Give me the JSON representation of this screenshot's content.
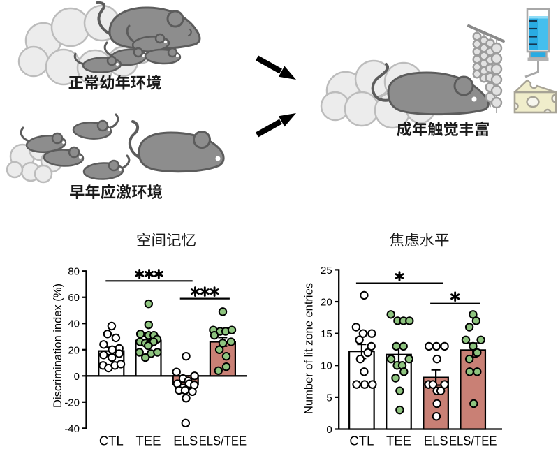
{
  "figure": {
    "background": "#ffffff",
    "diagram": {
      "scenes": [
        {
          "id": "normal-juvenile-environment",
          "label": "正常幼年环境",
          "icons": [
            "nest",
            "mother-mouse",
            "mouse-pup",
            "mouse-pup",
            "mouse-pup",
            "mouse-pup"
          ]
        },
        {
          "id": "early-life-stress-environment",
          "label": "早年应激环境",
          "icons": [
            "nest",
            "mother-mouse",
            "mouse-pup",
            "mouse-pup",
            "mouse-pup",
            "mouse-pup"
          ]
        },
        {
          "id": "adult-tactile-enrichment",
          "label": "成年触觉丰富",
          "icons": [
            "nest",
            "adult-mouse",
            "bead-curtain",
            "water-syringe",
            "cheese"
          ]
        }
      ],
      "arrow_count": 2
    },
    "colors": {
      "mouse_body": "#8d8d8d",
      "mouse_outline": "#5c5c5c",
      "nest_fill": "#ececec",
      "nest_outline": "#bcbcbc",
      "bead_fill": "#e2e2e2",
      "bead_outline": "#9c9c9c",
      "syringe_blue": "#29abe2",
      "cheese_fill": "#f0edcb",
      "cheese_outline": "#a7a396",
      "bar_stress_fill": "#c98075",
      "dot_green": "#8ec47f",
      "ink": "#000000"
    }
  },
  "chart_data": [
    {
      "type": "bar",
      "title": "空间记忆",
      "ylabel": "Discrimination index (%)",
      "xlabel": "",
      "ylim": [
        -40,
        80
      ],
      "yticks": [
        -40,
        -20,
        0,
        20,
        40,
        60,
        80
      ],
      "grid": false,
      "legend": null,
      "categories": [
        "CTL",
        "TEE",
        "ELS",
        "ELS/TEE"
      ],
      "series": [
        {
          "name": "CTL",
          "mean": 19,
          "sem": 2.8,
          "bar_fill": "#ffffff",
          "dot_fill": "#ffffff",
          "points": [
            [
              0.6,
              38
            ],
            [
              -5.4,
              32
            ],
            [
              6.6,
              29
            ],
            [
              -10.9,
              24
            ],
            [
              11.4,
              21
            ],
            [
              1.4,
              20
            ],
            [
              11.2,
              17
            ],
            [
              -10.9,
              16
            ],
            [
              0.9,
              14
            ],
            [
              -11.7,
              8
            ],
            [
              -4.0,
              6
            ],
            [
              5.2,
              8
            ],
            [
              13.7,
              9
            ]
          ]
        },
        {
          "name": "TEE",
          "mean": 27,
          "sem": 3.5,
          "bar_fill": "#ffffff",
          "dot_fill": "#8ec47f",
          "points": [
            [
              0.3,
              55
            ],
            [
              0.3,
              39
            ],
            [
              -11.4,
              32
            ],
            [
              0.3,
              31
            ],
            [
              7.8,
              31
            ],
            [
              12.5,
              28
            ],
            [
              -12.0,
              26
            ],
            [
              -4.3,
              25
            ],
            [
              2.8,
              25
            ],
            [
              7.4,
              26
            ],
            [
              -0.3,
              23
            ],
            [
              -12.8,
              18
            ],
            [
              3.8,
              17
            ],
            [
              12.9,
              18
            ],
            [
              -4.3,
              14
            ]
          ]
        },
        {
          "name": "ELS",
          "mean": -6.6,
          "sem": 3.0,
          "bar_fill": "#c98075",
          "dot_fill": "#ffffff",
          "points": [
            [
              0.8,
              15
            ],
            [
              -13.0,
              3
            ],
            [
              -3.7,
              -2
            ],
            [
              12.9,
              0
            ],
            [
              3.8,
              -4
            ],
            [
              -11.8,
              -6
            ],
            [
              5.4,
              -6
            ],
            [
              12.5,
              -7
            ],
            [
              -9.3,
              -11
            ],
            [
              -0.7,
              -11
            ],
            [
              9.8,
              -12
            ],
            [
              0.8,
              -17
            ],
            [
              0.1,
              -36
            ]
          ]
        },
        {
          "name": "ELS/TEE",
          "mean": 26,
          "sem": 3.3,
          "bar_fill": "#c98075",
          "dot_fill": "#8ec47f",
          "points": [
            [
              0.1,
              49
            ],
            [
              -13.5,
              35
            ],
            [
              -3.7,
              34
            ],
            [
              4.2,
              34
            ],
            [
              13.1,
              35
            ],
            [
              -12.0,
              31
            ],
            [
              0.1,
              25
            ],
            [
              12.0,
              26
            ],
            [
              -4.8,
              20
            ],
            [
              5.1,
              15
            ],
            [
              5.1,
              7
            ],
            [
              -6.1,
              4
            ]
          ]
        }
      ],
      "significance": [
        {
          "groups": [
            0,
            2
          ],
          "label": "***",
          "y": 72.5
        },
        {
          "groups": [
            2,
            3
          ],
          "label": "***",
          "y": 59
        }
      ]
    },
    {
      "type": "bar",
      "title": "焦虑水平",
      "ylabel": "Number of lit zone entries",
      "xlabel": "",
      "ylim": [
        0,
        25
      ],
      "yticks": [
        0,
        5,
        10,
        15,
        20,
        25
      ],
      "grid": false,
      "legend": null,
      "categories": [
        "CTL",
        "TEE",
        "ELS",
        "ELS/TEE"
      ],
      "series": [
        {
          "name": "CTL",
          "mean": 12.2,
          "sem": 1.1,
          "bar_fill": "#ffffff",
          "dot_fill": "#ffffff",
          "points": [
            [
              3.5,
              21
            ],
            [
              -8.0,
              16
            ],
            [
              2.0,
              15
            ],
            [
              14.4,
              15
            ],
            [
              -3.3,
              14
            ],
            [
              13.8,
              13
            ],
            [
              8.8,
              12
            ],
            [
              -2.0,
              11
            ],
            [
              3.5,
              9
            ],
            [
              -7.3,
              7
            ],
            [
              4.2,
              7
            ],
            [
              15.4,
              7
            ]
          ]
        },
        {
          "name": "TEE",
          "mean": 11.7,
          "sem": 1.2,
          "bar_fill": "#ffffff",
          "dot_fill": "#8ec47f",
          "points": [
            [
              -11.3,
              18
            ],
            [
              -1.6,
              17
            ],
            [
              6.7,
              17
            ],
            [
              15.3,
              17
            ],
            [
              -3.6,
              13
            ],
            [
              6.7,
              13
            ],
            [
              -11.0,
              11
            ],
            [
              14.7,
              11
            ],
            [
              -2.4,
              10
            ],
            [
              5.0,
              10
            ],
            [
              7.3,
              9
            ],
            [
              -4.5,
              8
            ],
            [
              1.4,
              6
            ],
            [
              1.4,
              3
            ]
          ]
        },
        {
          "name": "ELS",
          "mean": 8.1,
          "sem": 1.2,
          "bar_fill": "#c98075",
          "dot_fill": "#ffffff",
          "points": [
            [
              -9.9,
              13
            ],
            [
              0.8,
              13
            ],
            [
              12.5,
              13
            ],
            [
              1.6,
              11
            ],
            [
              -10.4,
              7
            ],
            [
              -4.2,
              7
            ],
            [
              12.5,
              7
            ],
            [
              1.6,
              6
            ],
            [
              7.0,
              6
            ],
            [
              1.6,
              4
            ],
            [
              0.8,
              2
            ]
          ]
        },
        {
          "name": "ELS/TEE",
          "mean": 12.4,
          "sem": 1.1,
          "bar_fill": "#c98075",
          "dot_fill": "#8ec47f",
          "points": [
            [
              0.2,
              18
            ],
            [
              4.7,
              17
            ],
            [
              -5.1,
              16
            ],
            [
              -10.2,
              14
            ],
            [
              11.4,
              14
            ],
            [
              0.2,
              13
            ],
            [
              6.1,
              12
            ],
            [
              -5.1,
              11
            ],
            [
              -4.6,
              9
            ],
            [
              6.1,
              9
            ],
            [
              1.1,
              4
            ]
          ]
        }
      ],
      "significance": [
        {
          "groups": [
            0,
            2
          ],
          "label": "*",
          "y": 22.9
        },
        {
          "groups": [
            2,
            3
          ],
          "label": "*",
          "y": 19.7
        }
      ]
    }
  ]
}
